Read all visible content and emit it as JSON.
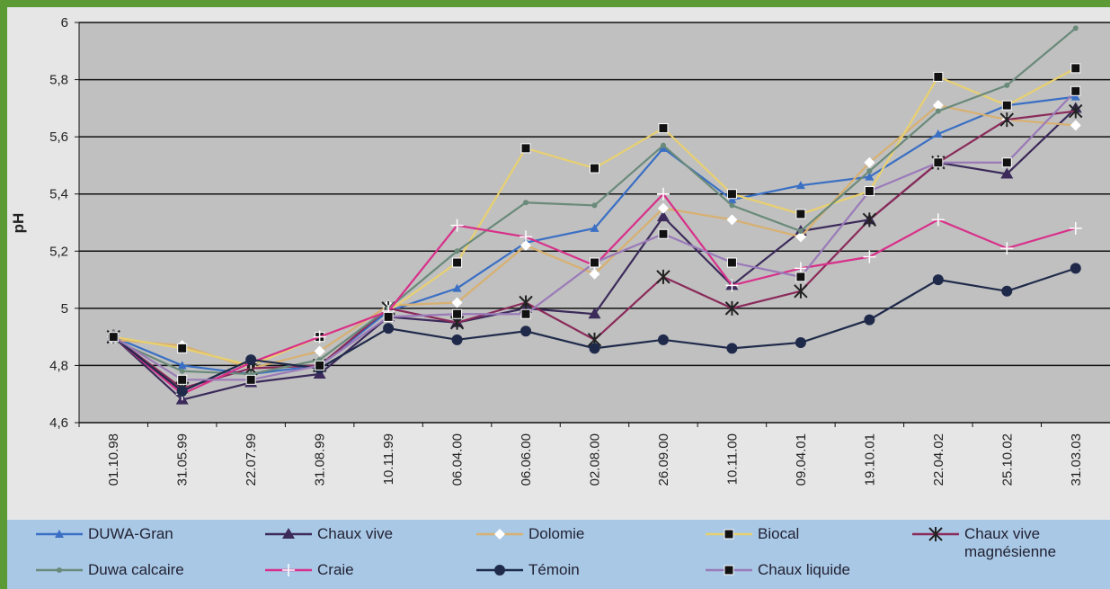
{
  "chart_data": {
    "type": "line",
    "y_label": "pH",
    "categories": [
      "01.10.98",
      "31.05.99",
      "22.07.99",
      "31.08.99",
      "10.11.99",
      "06.04.00",
      "06.06.00",
      "02.08.00",
      "26.09.00",
      "10.11.00",
      "09.04.01",
      "19.10.01",
      "22.04.02",
      "25.10.02",
      "31.03.03"
    ],
    "ylim": [
      4.6,
      6
    ],
    "yticks": [
      {
        "value": 4.6,
        "label": "4,6"
      },
      {
        "value": 4.8,
        "label": "4,8"
      },
      5,
      {
        "value": 5.2,
        "label": "5,2"
      },
      {
        "value": 5.4,
        "label": "5,4"
      },
      {
        "value": 5.6,
        "label": "5,6"
      },
      {
        "value": 5.8,
        "label": "5,8"
      },
      6
    ],
    "grid": true,
    "series": [
      {
        "name": "DUWA-Gran",
        "color": "#3a6fc4",
        "marker": "triangle",
        "values": [
          4.9,
          4.8,
          4.77,
          4.8,
          4.99,
          5.07,
          5.23,
          5.28,
          5.56,
          5.38,
          5.43,
          5.46,
          5.61,
          5.71,
          5.74
        ]
      },
      {
        "name": "Chaux vive",
        "color": "#3b2a5a",
        "marker": "bigtriangle",
        "values": [
          4.9,
          4.68,
          4.74,
          4.77,
          4.97,
          4.95,
          5.0,
          4.98,
          5.32,
          5.08,
          5.27,
          5.31,
          5.51,
          5.47,
          5.7
        ]
      },
      {
        "name": "Dolomie",
        "color": "#d8b070",
        "marker": "diamond",
        "values": [
          4.89,
          4.87,
          4.79,
          4.85,
          5.01,
          5.02,
          5.22,
          5.12,
          5.35,
          5.31,
          5.25,
          5.51,
          5.71,
          5.66,
          5.64
        ]
      },
      {
        "name": "Biocal",
        "color": "#e8d070",
        "marker": "square",
        "values": [
          4.9,
          4.86,
          4.8,
          4.9,
          4.99,
          5.16,
          5.56,
          5.49,
          5.63,
          5.4,
          5.33,
          5.41,
          5.81,
          5.71,
          5.84
        ]
      },
      {
        "name": "Chaux vive magnésienne",
        "color": "#8a2a5a",
        "marker": "asterisk",
        "values": [
          4.9,
          4.72,
          4.79,
          4.8,
          5.0,
          4.95,
          5.02,
          4.89,
          5.11,
          5.0,
          5.06,
          5.31,
          5.51,
          5.66,
          5.69
        ]
      },
      {
        "name": "Duwa calcaire",
        "color": "#6a8a7a",
        "marker": "circle",
        "values": [
          4.89,
          4.78,
          4.77,
          4.82,
          5.0,
          5.2,
          5.37,
          5.36,
          5.57,
          5.36,
          5.27,
          5.48,
          5.69,
          5.78,
          5.98
        ]
      },
      {
        "name": "Craie",
        "color": "#d8308a",
        "marker": "plus",
        "values": [
          4.9,
          4.7,
          4.81,
          4.9,
          4.99,
          5.29,
          5.25,
          5.15,
          5.4,
          5.08,
          5.14,
          5.18,
          5.31,
          5.21,
          5.28
        ]
      },
      {
        "name": "Témoin",
        "color": "#1f2a4a",
        "marker": "dot",
        "values": [
          4.9,
          4.71,
          4.82,
          4.79,
          4.93,
          4.89,
          4.92,
          4.86,
          4.89,
          4.86,
          4.88,
          4.96,
          5.1,
          5.06,
          5.14
        ]
      },
      {
        "name": "Chaux liquide",
        "color": "#9a7ab8",
        "marker": "square",
        "values": [
          4.9,
          4.75,
          4.75,
          4.8,
          4.97,
          4.98,
          4.98,
          5.16,
          5.26,
          5.16,
          5.11,
          5.41,
          5.51,
          5.51,
          5.76
        ]
      }
    ]
  }
}
